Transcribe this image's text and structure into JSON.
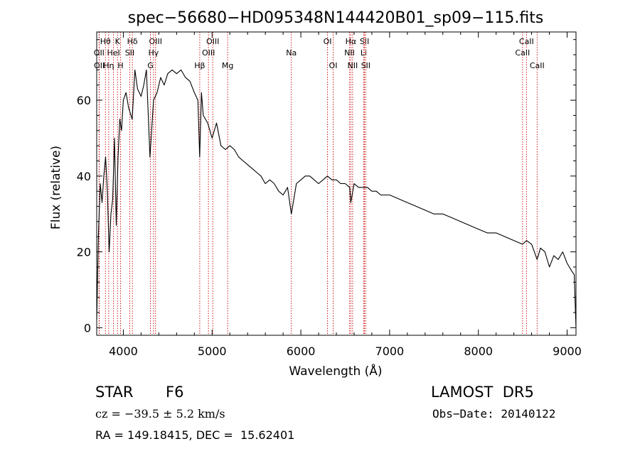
{
  "chart_data": {
    "type": "line",
    "title": "spec−56680−HD095348N144420B01_sp09−115.fits",
    "xlabel": "Wavelength (Å)",
    "ylabel": "Flux (relative)",
    "xlim": [
      3700,
      9100
    ],
    "ylim": [
      -2,
      78
    ],
    "x_ticks": [
      4000,
      5000,
      6000,
      7000,
      8000,
      9000
    ],
    "y_ticks": [
      0,
      20,
      40,
      60
    ],
    "grid": false,
    "legend": "none",
    "line_color": "#000000",
    "marker_color": "#cc0000",
    "line_markers": [
      {
        "label": "Hθ",
        "x": 3798,
        "row": 1
      },
      {
        "label": "K",
        "x": 3934,
        "row": 1
      },
      {
        "label": "Hδ",
        "x": 4102,
        "row": 1
      },
      {
        "label": "OIII",
        "x": 4363,
        "row": 1
      },
      {
        "label": "OIII",
        "x": 5007,
        "row": 1
      },
      {
        "label": "OI",
        "x": 6300,
        "row": 1
      },
      {
        "label": "Hα",
        "x": 6563,
        "row": 1
      },
      {
        "label": "SII",
        "x": 6717,
        "row": 1
      },
      {
        "label": "CaII",
        "x": 8542,
        "row": 1
      },
      {
        "label": "OII",
        "x": 3727,
        "row": 2
      },
      {
        "label": "HeI",
        "x": 3889,
        "row": 2
      },
      {
        "label": "SII",
        "x": 4072,
        "row": 2
      },
      {
        "label": "Hγ",
        "x": 4340,
        "row": 2
      },
      {
        "label": "OIII",
        "x": 4959,
        "row": 2
      },
      {
        "label": "Na",
        "x": 5893,
        "row": 2
      },
      {
        "label": "NII",
        "x": 6548,
        "row": 2
      },
      {
        "label": "Li",
        "x": 6708,
        "row": 2
      },
      {
        "label": "CaII",
        "x": 8498,
        "row": 2
      },
      {
        "label": "OII",
        "x": 3729,
        "row": 3
      },
      {
        "label": "Hη",
        "x": 3835,
        "row": 3
      },
      {
        "label": "H",
        "x": 3969,
        "row": 3
      },
      {
        "label": "G",
        "x": 4305,
        "row": 3
      },
      {
        "label": "Hβ",
        "x": 4861,
        "row": 3
      },
      {
        "label": "Mg",
        "x": 5175,
        "row": 3
      },
      {
        "label": "OI",
        "x": 6364,
        "row": 3
      },
      {
        "label": "NII",
        "x": 6583,
        "row": 3
      },
      {
        "label": "SII",
        "x": 6731,
        "row": 3
      },
      {
        "label": "CaII",
        "x": 8662,
        "row": 3
      }
    ],
    "series": [
      {
        "x": [
          3700,
          3720,
          3740,
          3760,
          3780,
          3800,
          3820,
          3840,
          3860,
          3880,
          3900,
          3920,
          3940,
          3960,
          3980,
          4000,
          4030,
          4060,
          4100,
          4130,
          4160,
          4200,
          4230,
          4260,
          4300,
          4340,
          4380,
          4420,
          4460,
          4500,
          4550,
          4600,
          4650,
          4700,
          4750,
          4800,
          4840,
          4860,
          4880,
          4900,
          4950,
          5000,
          5050,
          5100,
          5150,
          5200,
          5250,
          5300,
          5350,
          5400,
          5450,
          5500,
          5550,
          5600,
          5650,
          5700,
          5750,
          5800,
          5850,
          5893,
          5950,
          6000,
          6050,
          6100,
          6150,
          6200,
          6250,
          6300,
          6350,
          6400,
          6450,
          6500,
          6550,
          6563,
          6600,
          6650,
          6700,
          6750,
          6800,
          6850,
          6900,
          6950,
          7000,
          7100,
          7200,
          7300,
          7400,
          7500,
          7600,
          7700,
          7800,
          7900,
          8000,
          8100,
          8200,
          8300,
          8400,
          8498,
          8542,
          8600,
          8662,
          8700,
          8750,
          8800,
          8850,
          8900,
          8950,
          9000,
          9050,
          9080,
          9100
        ],
        "values": [
          2,
          25,
          38,
          33,
          40,
          45,
          36,
          20,
          30,
          34,
          50,
          27,
          45,
          55,
          52,
          60,
          62,
          58,
          55,
          68,
          63,
          61,
          64,
          68,
          45,
          60,
          62,
          66,
          64,
          67,
          68,
          67,
          68,
          66,
          65,
          62,
          60,
          45,
          62,
          56,
          54,
          50,
          54,
          48,
          47,
          48,
          47,
          45,
          44,
          43,
          42,
          41,
          40,
          38,
          39,
          38,
          36,
          35,
          37,
          30,
          38,
          39,
          40,
          40,
          39,
          38,
          39,
          40,
          39,
          39,
          38,
          38,
          37,
          33,
          38,
          37,
          37,
          37,
          36,
          36,
          35,
          35,
          35,
          34,
          33,
          32,
          31,
          30,
          30,
          29,
          28,
          27,
          26,
          25,
          25,
          24,
          23,
          22,
          23,
          22,
          18,
          21,
          20,
          16,
          19,
          18,
          20,
          17,
          15,
          14,
          0
        ]
      }
    ]
  },
  "info": {
    "object_type": "STAR",
    "subclass": "F6",
    "survey": "LAMOST  DR5",
    "redshift": "cz = −39.5 ± 5.2 km/s",
    "obs_date": "Obs−Date: 20140122",
    "coords": "RA = 149.18415, DEC =  15.62401"
  }
}
